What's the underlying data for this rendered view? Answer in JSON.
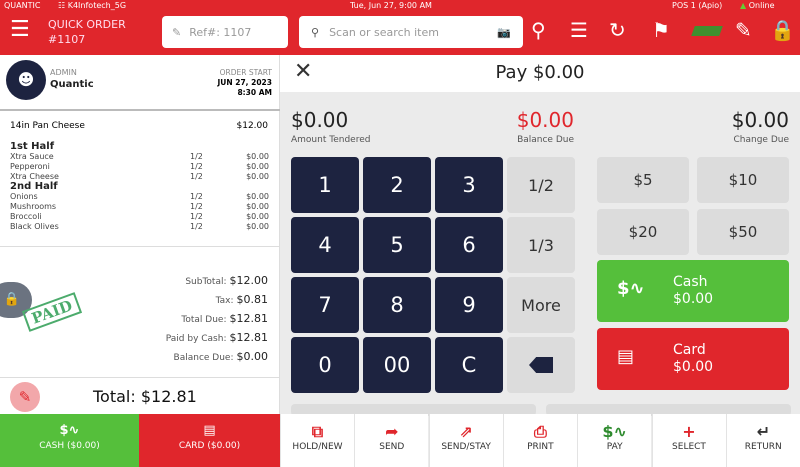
{
  "status": {
    "brand": "QUANTIC",
    "wifi": "K4Infotech_5G",
    "datetime": "Tue, Jun 27, 9:00 AM",
    "pos": "POS 1 (Apio)",
    "online": "Online"
  },
  "header": {
    "title": "QUICK ORDER",
    "order_no": "#1107",
    "ref_placeholder": "Ref#: 1107",
    "search_placeholder": "Scan or search item"
  },
  "order": {
    "user_role": "ADMIN",
    "user_name": "Quantic",
    "start_label": "ORDER START",
    "start_date": "JUN 27, 2023",
    "start_time": "8:30 AM",
    "item": {
      "name": "14in Pan Cheese",
      "price": "$12.00"
    },
    "groups": [
      {
        "title": "1st Half",
        "mods": [
          {
            "name": "Xtra Sauce",
            "qty": "1/2",
            "price": "$0.00"
          },
          {
            "name": "Pepperoni",
            "qty": "1/2",
            "price": "$0.00"
          },
          {
            "name": "Xtra Cheese",
            "qty": "1/2",
            "price": "$0.00"
          }
        ]
      },
      {
        "title": "2nd Half",
        "mods": [
          {
            "name": "Onions",
            "qty": "1/2",
            "price": "$0.00"
          },
          {
            "name": "Mushrooms",
            "qty": "1/2",
            "price": "$0.00"
          },
          {
            "name": "Broccoli",
            "qty": "1/2",
            "price": "$0.00"
          },
          {
            "name": "Black Olives",
            "qty": "1/2",
            "price": "$0.00"
          }
        ]
      }
    ],
    "summary": [
      {
        "label": "SubTotal:",
        "value": "$12.00"
      },
      {
        "label": "Tax:",
        "value": "$0.81"
      },
      {
        "label": "Total Due:",
        "value": "$12.81"
      },
      {
        "label": "Paid by Cash:",
        "value": "$12.81"
      },
      {
        "label": "Balance Due:",
        "value": "$0.00"
      }
    ],
    "stamp": "PAID",
    "total": "Total: $12.81",
    "cash_btn": "CASH ($0.00)",
    "card_btn": "CARD ($0.00)"
  },
  "pay": {
    "title": "Pay $0.00",
    "tendered": "$0.00",
    "tendered_label": "Amount Tendered",
    "balance": "$0.00",
    "balance_label": "Balance Due",
    "change": "$0.00",
    "change_label": "Change Due",
    "keys": [
      "1",
      "2",
      "3",
      "1/2",
      "4",
      "5",
      "6",
      "1/3",
      "7",
      "8",
      "9",
      "More",
      "0",
      "00",
      "C",
      ""
    ],
    "quick": [
      "$5",
      "$10",
      "$20",
      "$50"
    ],
    "cash": {
      "label": "Cash",
      "amount": "$0.00"
    },
    "card": {
      "label": "Card",
      "amount": "$0.00"
    }
  },
  "toolbar": [
    "HOLD/NEW",
    "SEND",
    "SEND/STAY",
    "PRINT",
    "PAY",
    "SELECT",
    "RETURN"
  ],
  "colors": {
    "brand_red": "#e0262c",
    "navy": "#1d2340",
    "green": "#55bf3b"
  }
}
